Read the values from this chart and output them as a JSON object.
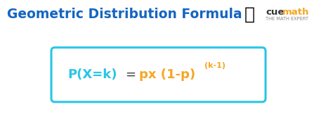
{
  "title": "Geometric Distribution Formula",
  "title_color": "#1565c0",
  "title_fontsize": 13.5,
  "title_fontweight": "bold",
  "bg_color": "#ffffff",
  "box_edgecolor": "#29c5e6",
  "box_facecolor": "#ffffff",
  "formula_left_text": "P(X=k)",
  "formula_left_color": "#29c5e6",
  "formula_eq_color": "#333333",
  "formula_right1": "px (1-p)",
  "formula_right1_color": "#f5a623",
  "formula_superscript": "(k-1)",
  "formula_superscript_color": "#f5a623",
  "formula_fontsize": 13,
  "formula_super_fontsize": 8,
  "cue_color": "#333333",
  "math_color": "#f5a623",
  "sub_color": "#888888",
  "figw": 4.74,
  "figh": 1.69,
  "dpi": 100
}
